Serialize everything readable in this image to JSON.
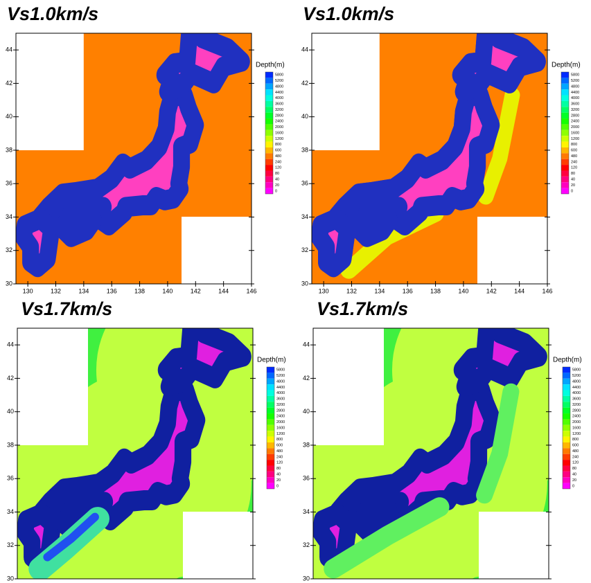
{
  "panels": [
    {
      "title": "Vs1.0km/s",
      "xlim": [
        129.15,
        146
      ],
      "ylim": [
        30,
        45
      ],
      "xticks": [
        130,
        132,
        134,
        136,
        138,
        140,
        142,
        144,
        146
      ],
      "yticks": [
        30,
        32,
        34,
        36,
        38,
        40,
        42,
        44
      ],
      "legend": {
        "title": "Depth(m)",
        "levels": [
          5800,
          5200,
          4800,
          4400,
          4000,
          3600,
          3200,
          2800,
          2400,
          2000,
          1600,
          1200,
          800,
          600,
          480,
          240,
          120,
          80,
          40,
          20,
          0
        ]
      }
    },
    {
      "title": "Vs1.0km/s",
      "xlim": [
        129.15,
        146
      ],
      "ylim": [
        30,
        45
      ],
      "xticks": [
        130,
        132,
        134,
        136,
        138,
        140,
        142,
        144,
        146
      ],
      "yticks": [
        30,
        32,
        34,
        36,
        38,
        40,
        42,
        44
      ],
      "legend": {
        "title": "Depth(m)",
        "levels": [
          5800,
          5200,
          4800,
          4400,
          4000,
          3600,
          3200,
          2800,
          2400,
          2000,
          1600,
          1200,
          800,
          600,
          480,
          240,
          120,
          80,
          40,
          20,
          0
        ]
      }
    },
    {
      "title": "Vs1.7km/s",
      "xlim": [
        129.15,
        146
      ],
      "ylim": [
        30,
        45
      ],
      "yticks": [
        30,
        32,
        34,
        36,
        38,
        40,
        42,
        44
      ],
      "legend": {
        "title": "Depth(m)",
        "levels": [
          5800,
          5200,
          4800,
          4400,
          4000,
          3600,
          3200,
          2800,
          2400,
          2000,
          1600,
          1200,
          800,
          600,
          480,
          240,
          120,
          80,
          40,
          20,
          0
        ]
      }
    },
    {
      "title": "Vs1.7km/s",
      "xlim": [
        129.15,
        146
      ],
      "ylim": [
        30,
        45
      ],
      "yticks": [
        30,
        32,
        34,
        36,
        38,
        40,
        42,
        44
      ],
      "legend": {
        "title": "Depth(m)",
        "levels": [
          5800,
          5200,
          4800,
          4400,
          4000,
          3600,
          3200,
          2800,
          2400,
          2000,
          1600,
          1200,
          800,
          600,
          480,
          240,
          120,
          80,
          40,
          20,
          0
        ]
      }
    }
  ]
}
